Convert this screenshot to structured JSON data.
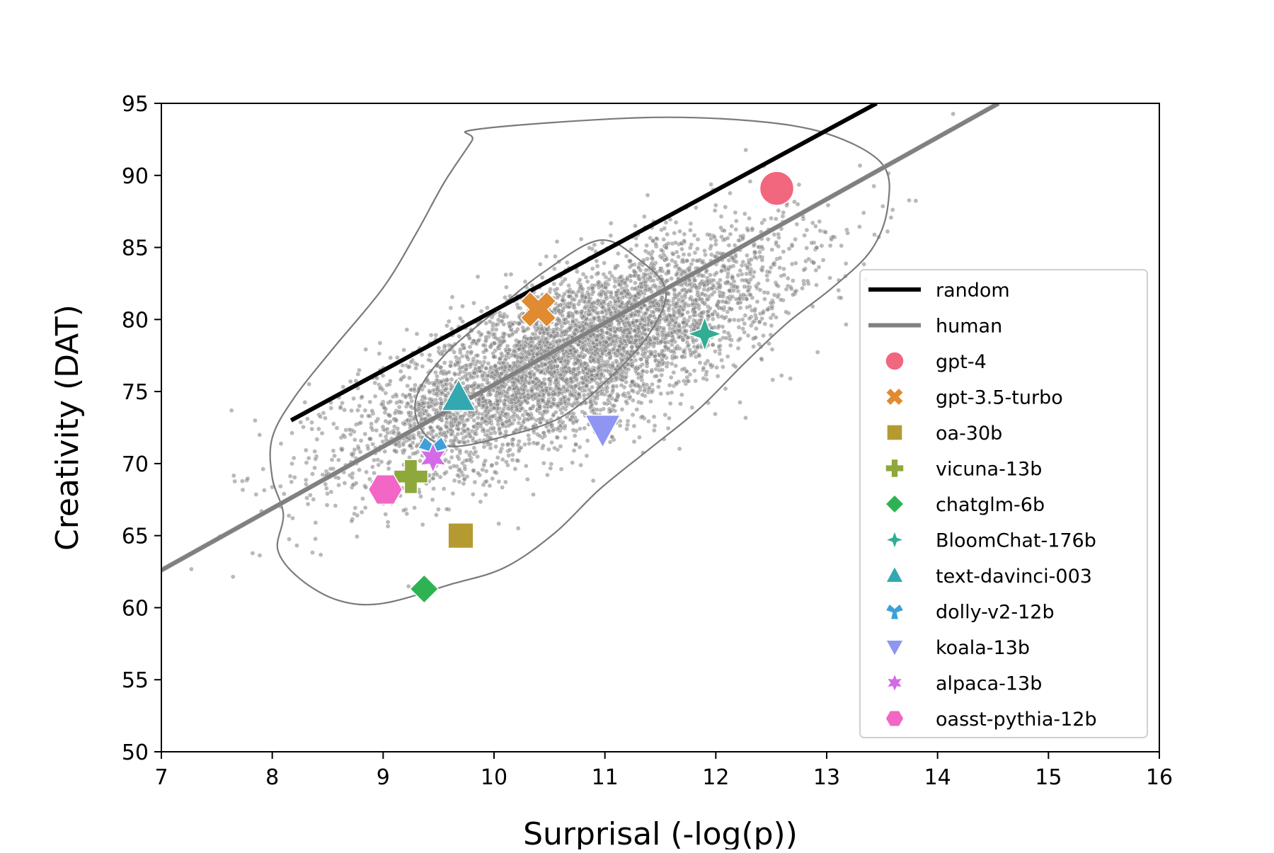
{
  "chart_data": {
    "type": "scatter",
    "title": "",
    "xlabel": "Surprisal (-log(p))",
    "ylabel": "Creativity (DAT)",
    "xlim": [
      7,
      16
    ],
    "ylim": [
      50,
      95
    ],
    "xticks": [
      7,
      8,
      9,
      10,
      11,
      12,
      13,
      14,
      15,
      16
    ],
    "yticks": [
      50,
      55,
      60,
      65,
      70,
      75,
      80,
      85,
      90,
      95
    ],
    "grid": false,
    "legend_position": "center-right",
    "background_scatter": {
      "description_hidden": true,
      "color": "#808080",
      "center": [
        10.7,
        77.5
      ],
      "count": 5200
    },
    "lines": [
      {
        "name": "random",
        "color": "#000000",
        "x": [
          8.17,
          13.45
        ],
        "y": [
          73.0,
          95.0
        ]
      },
      {
        "name": "human",
        "color": "#808080",
        "x": [
          7.0,
          14.55
        ],
        "y": [
          62.6,
          95.0
        ]
      }
    ],
    "contours": {
      "color": "#7a7a7a",
      "outer": [
        [
          9.85,
          93.2
        ],
        [
          11.3,
          94.0
        ],
        [
          12.3,
          93.8
        ],
        [
          13.0,
          92.9
        ],
        [
          13.5,
          90.8
        ],
        [
          13.55,
          87.8
        ],
        [
          13.4,
          84.8
        ],
        [
          13.05,
          82.2
        ],
        [
          12.65,
          79.8
        ],
        [
          12.25,
          76.9
        ],
        [
          11.85,
          73.8
        ],
        [
          11.4,
          71.0
        ],
        [
          10.95,
          68.2
        ],
        [
          10.55,
          65.2
        ],
        [
          10.1,
          62.8
        ],
        [
          9.6,
          61.6
        ],
        [
          9.0,
          60.3
        ],
        [
          8.6,
          60.5
        ],
        [
          8.25,
          62.0
        ],
        [
          8.05,
          64.0
        ],
        [
          8.1,
          66.5
        ],
        [
          8.0,
          69.0
        ],
        [
          8.0,
          71.8
        ],
        [
          8.2,
          74.6
        ],
        [
          8.55,
          78.0
        ],
        [
          9.0,
          82.2
        ],
        [
          9.3,
          86.0
        ],
        [
          9.55,
          89.5
        ],
        [
          9.8,
          92.4
        ]
      ],
      "inner": [
        [
          10.95,
          85.5
        ],
        [
          11.3,
          84.2
        ],
        [
          11.55,
          82.0
        ],
        [
          11.4,
          79.0
        ],
        [
          11.05,
          76.0
        ],
        [
          10.6,
          73.2
        ],
        [
          10.05,
          71.8
        ],
        [
          9.6,
          71.2
        ],
        [
          9.35,
          72.3
        ],
        [
          9.3,
          74.6
        ],
        [
          9.55,
          77.5
        ],
        [
          10.0,
          80.5
        ],
        [
          10.45,
          83.3
        ]
      ]
    },
    "series": [
      {
        "name": "gpt-4",
        "marker": "circle",
        "color": "#f0677e",
        "x": 12.55,
        "y": 89.1
      },
      {
        "name": "gpt-3.5-turbo",
        "marker": "x",
        "color": "#e08a31",
        "x": 10.4,
        "y": 80.7
      },
      {
        "name": "oa-30b",
        "marker": "square",
        "color": "#b59a32",
        "x": 9.7,
        "y": 65.0
      },
      {
        "name": "vicuna-13b",
        "marker": "plus",
        "color": "#8ea83b",
        "x": 9.25,
        "y": 69.1
      },
      {
        "name": "chatglm-6b",
        "marker": "diamond",
        "color": "#2eb352",
        "x": 9.37,
        "y": 61.3
      },
      {
        "name": "BloomChat-176b",
        "marker": "star4",
        "color": "#2fae92",
        "x": 11.9,
        "y": 79.0
      },
      {
        "name": "text-davinci-003",
        "marker": "triangle-up",
        "color": "#33a8b0",
        "x": 9.68,
        "y": 74.6
      },
      {
        "name": "dolly-v2-12b",
        "marker": "tri",
        "color": "#3ea0d8",
        "x": 9.45,
        "y": 71.0
      },
      {
        "name": "koala-13b",
        "marker": "triangle-down",
        "color": "#8f95f2",
        "x": 10.98,
        "y": 72.4
      },
      {
        "name": "alpaca-13b",
        "marker": "star6",
        "color": "#d56ae8",
        "x": 9.45,
        "y": 70.4
      },
      {
        "name": "oasst-pythia-12b",
        "marker": "hexagon",
        "color": "#f266c5",
        "x": 9.02,
        "y": 68.2
      }
    ]
  }
}
